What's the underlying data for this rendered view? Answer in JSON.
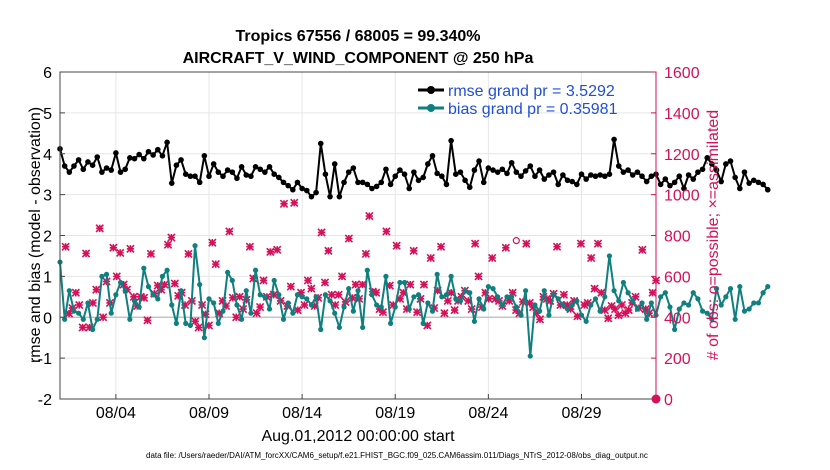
{
  "chart_data": {
    "type": "line",
    "title_line1": "Tropics 67556 / 68005 = 99.340%",
    "title_line2": "AIRCRAFT_V_WIND_COMPONENT @ 250 hPa",
    "xlabel": "Aug.01,2012 00:00:00 start",
    "ylabel_left": "rmse and bias (model - observation)",
    "ylabel_right": "# of obs: o=possible; ×=assimilated",
    "footnote": "data file: /Users/raeder/DAI/ATM_forcXX/CAM6_setup/f.e21.FHIST_BGC.f09_025.CAM6assim.011/Diags_NTrS_2012-08/obs_diag_output.nc",
    "xlim": [
      1,
      33
    ],
    "x_ticks": [
      {
        "x": 4,
        "label": "08/04"
      },
      {
        "x": 9,
        "label": "08/09"
      },
      {
        "x": 14,
        "label": "08/14"
      },
      {
        "x": 19,
        "label": "08/19"
      },
      {
        "x": 24,
        "label": "08/24"
      },
      {
        "x": 29,
        "label": "08/29"
      }
    ],
    "ylim_left": [
      -2,
      6
    ],
    "yticks_left": [
      "-2",
      "-1",
      "0",
      "1",
      "2",
      "3",
      "4",
      "5",
      "6"
    ],
    "ylim_right": [
      0,
      1600
    ],
    "yticks_right": [
      "0",
      "200",
      "400",
      "600",
      "800",
      "1000",
      "1200",
      "1400",
      "1600"
    ],
    "x_start": 1.0,
    "x_step": 0.25,
    "legend": [
      {
        "name": "rmse grand pr = 3.5292",
        "color": "#000000"
      },
      {
        "name": "bias grand pr = 0.35981",
        "color": "#0f7f7f"
      }
    ],
    "colors": {
      "rmse": "#000000",
      "bias": "#0f7f7f",
      "obs": "#d41159",
      "zero_line": "#bbbbbb",
      "grid": "#e6e6e6",
      "legend_text": "#1f4fd6"
    },
    "series": [
      {
        "name": "rmse",
        "axis": "left",
        "values": [
          4.12,
          3.7,
          3.55,
          3.7,
          3.85,
          3.62,
          3.8,
          3.72,
          3.92,
          3.55,
          3.65,
          3.6,
          4.02,
          3.55,
          3.62,
          3.9,
          3.88,
          3.98,
          3.88,
          4.05,
          3.97,
          4.1,
          3.95,
          4.28,
          3.28,
          3.72,
          3.85,
          3.5,
          3.45,
          3.45,
          3.3,
          3.95,
          3.45,
          3.75,
          3.55,
          3.45,
          3.6,
          3.55,
          3.4,
          3.68,
          3.48,
          3.45,
          3.68,
          3.62,
          3.55,
          3.68,
          3.5,
          3.42,
          3.3,
          3.22,
          3.12,
          3.3,
          3.15,
          3.1,
          2.95,
          3.05,
          4.25,
          3.5,
          2.95,
          3.75,
          2.95,
          3.3,
          3.55,
          3.65,
          3.3,
          3.3,
          3.25,
          3.15,
          3.2,
          3.3,
          3.62,
          3.25,
          3.45,
          3.6,
          3.5,
          3.15,
          3.55,
          3.35,
          3.42,
          3.75,
          3.95,
          3.52,
          3.45,
          3.25,
          4.32,
          3.5,
          3.55,
          3.35,
          3.18,
          3.6,
          3.82,
          3.3,
          3.65,
          3.6,
          3.55,
          3.62,
          3.52,
          3.78,
          3.55,
          3.45,
          3.58,
          3.7,
          3.45,
          3.6,
          3.38,
          3.48,
          3.55,
          3.25,
          3.48,
          3.35,
          3.32,
          3.25,
          3.5,
          3.38,
          3.48,
          3.45,
          3.48,
          3.45,
          3.5,
          4.35,
          3.7,
          3.55,
          3.6,
          3.48,
          3.55,
          3.45,
          3.32,
          3.45,
          3.5,
          3.25,
          3.38,
          3.22,
          3.3,
          3.45,
          3.15,
          3.48,
          3.38,
          3.55,
          3.62,
          3.9,
          3.75,
          3.6,
          3.32,
          3.75,
          3.82,
          3.42,
          3.15,
          3.55,
          3.28,
          3.35,
          3.3,
          3.25,
          3.12
        ]
      },
      {
        "name": "bias",
        "axis": "left",
        "values": [
          1.35,
          -0.05,
          0.65,
          0.15,
          0.1,
          -0.05,
          0.35,
          -0.3,
          -0.05,
          1.0,
          1.05,
          0.1,
          0.55,
          0.85,
          0.65,
          -0.05,
          0.4,
          0.25,
          1.2,
          0.75,
          0.55,
          0.45,
          1.0,
          1.15,
          0.3,
          -0.15,
          0.65,
          -0.15,
          -0.2,
          1.75,
          0.8,
          -0.5,
          0.45,
          0.35,
          -0.15,
          0.15,
          1.1,
          0.9,
          0.3,
          -0.05,
          0.65,
          0.1,
          1.15,
          0.55,
          0.5,
          0.2,
          0.9,
          0.55,
          -0.05,
          0.35,
          0.1,
          0.55,
          0.5,
          0.45,
          0.3,
          0.5,
          -0.3,
          0.55,
          0.4,
          0.1,
          -0.25,
          0.25,
          0.7,
          0.15,
          0.65,
          -0.25,
          1.15,
          0.55,
          0.3,
          0.25,
          1.0,
          -0.15,
          0.25,
          0.85,
          0.85,
          0.2,
          0.5,
          0.55,
          -0.15,
          0.35,
          0.15,
          1.05,
          0.5,
          0.55,
          1.0,
          0.45,
          0.4,
          0.65,
          0.6,
          -0.1,
          0.45,
          0.2,
          0.75,
          0.7,
          0.5,
          0.3,
          0.5,
          0.5,
          0.25,
          0.05,
          0.65,
          -0.95,
          0.3,
          0.15,
          0.65,
          0.05,
          0.55,
          0.45,
          0.3,
          0.2,
          0.3,
          0.4,
          0.05,
          -0.1,
          0.3,
          0.45,
          0.15,
          0.5,
          1.5,
          0.65,
          0.4,
          0.85,
          0.6,
          0.4,
          0.2,
          0.35,
          -0.05,
          0.35,
          0.05,
          0.5,
          0.6,
          0.25,
          -0.3,
          0.2,
          0.35,
          0.3,
          0.6,
          0.45,
          0.15,
          0.1,
          -0.05,
          0.7,
          0.3,
          0.5,
          0.7,
          -0.05,
          0.75,
          0.15,
          0.2,
          0.35,
          0.35,
          0.6,
          0.75
        ]
      },
      {
        "name": "obs_assimilated",
        "axis": "right",
        "values": [
          745,
          418,
          445,
          520,
          460,
          350,
          712,
          350,
          470,
          535,
          835,
          400,
          575,
          470,
          740,
          600,
          715,
          560,
          535,
          735,
          500,
          455,
          500,
          495,
          385,
          710,
          515,
          555,
          535,
          560,
          755,
          790,
          565,
          505,
          520,
          460,
          710,
          480,
          380,
          350,
          460,
          415,
          360,
          765,
          660,
          420,
          480,
          455,
          820,
          495,
          400,
          500,
          440,
          485,
          745,
          590,
          420,
          450,
          580,
          500,
          720,
          510,
          730,
          480,
          955,
          455,
          550,
          960,
          435,
          520,
          460,
          580,
          540,
          455,
          495,
          815,
          570,
          725,
          510,
          460,
          510,
          600,
          475,
          785,
          495,
          560,
          490,
          560,
          710,
          895,
          525,
          520,
          440,
          425,
          820,
          555,
          460,
          750,
          490,
          520,
          440,
          560,
          725,
          425,
          490,
          560,
          360,
          690,
          445,
          530,
          745,
          420,
          480,
          520,
          435,
          480,
          500,
          530,
          480,
          440,
          760,
          600,
          450,
          520,
          490,
          690,
          490,
          480,
          455,
          740,
          480,
          520,
          435,
          420,
          475,
          760,
          470,
          450,
          420,
          390,
          500,
          490,
          480,
          515,
          745,
          460,
          510,
          460,
          440,
          480,
          405,
          760,
          460,
          470,
          690,
          540,
          760,
          520,
          435,
          395,
          455,
          440,
          410,
          460,
          420,
          435,
          470,
          500,
          445,
          730,
          440,
          420,
          520,
          580
        ]
      }
    ],
    "obs_possible_max": 775
  }
}
